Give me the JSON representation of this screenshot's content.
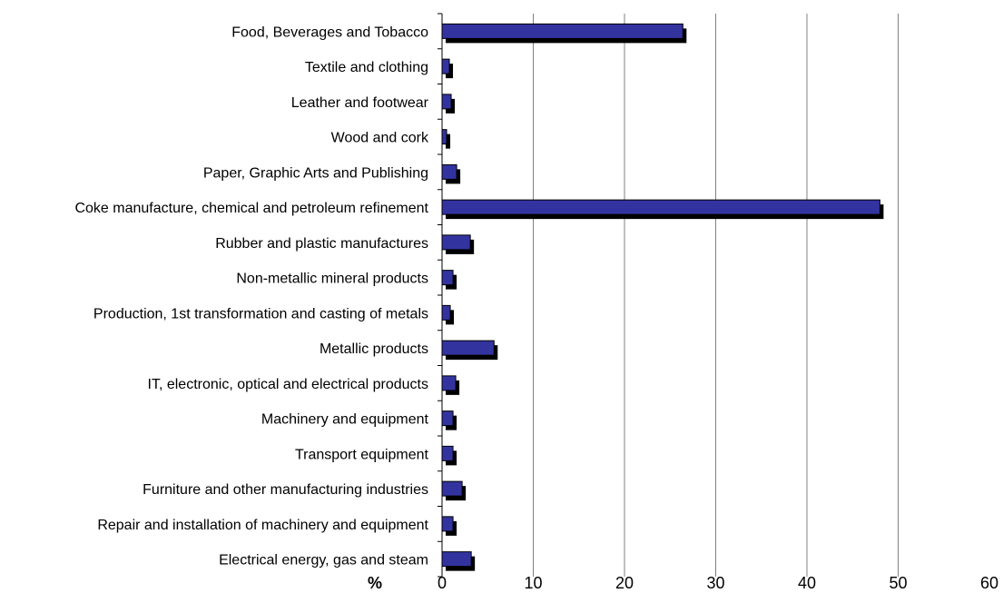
{
  "chart_data": {
    "type": "bar",
    "orientation": "horizontal",
    "categories": [
      "Food, Beverages and Tobacco",
      "Textile and clothing",
      "Leather and footwear",
      "Wood and cork",
      "Paper, Graphic Arts and Publishing",
      "Coke manufacture, chemical and petroleum refinement",
      "Rubber and plastic manufactures",
      "Non-metallic mineral products",
      "Production, 1st transformation and casting of metals",
      "Metallic products",
      "IT, electronic, optical and electrical products",
      "Machinery and equipment",
      "Transport equipment",
      "Furniture and other manufacturing industries",
      "Repair and installation of machinery and equipment",
      "Electrical energy, gas and steam"
    ],
    "values": [
      26.4,
      0.8,
      1.0,
      0.5,
      1.6,
      48.0,
      3.1,
      1.2,
      0.9,
      5.7,
      1.5,
      1.2,
      1.2,
      2.2,
      1.2,
      3.2
    ],
    "title": "",
    "xlabel": "%",
    "ylabel": "",
    "xlim": [
      0,
      60
    ],
    "xticks": [
      0,
      10,
      20,
      30,
      40,
      50,
      60
    ],
    "grid": "vertical",
    "legend": "none",
    "colors": {
      "bar_fill": "#3333a0",
      "bar_shadow": "#000000",
      "grid": "#808080",
      "axis": "#000000"
    }
  }
}
